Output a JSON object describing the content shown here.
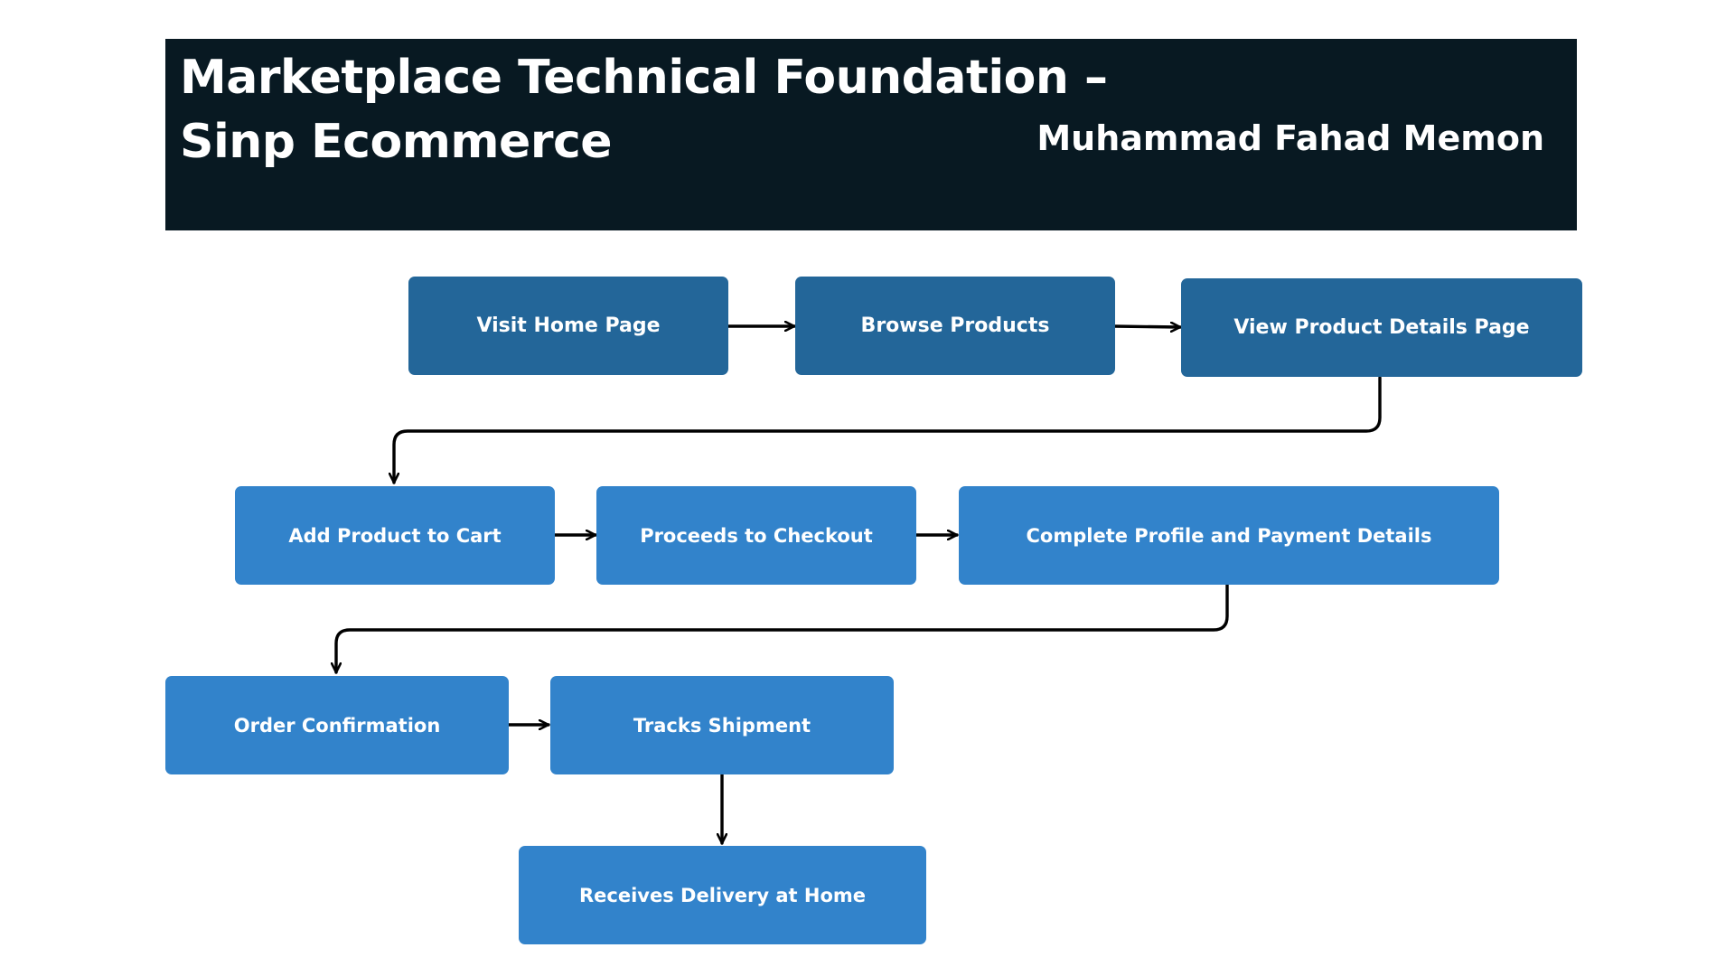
{
  "header": {
    "title_line1": "Marketplace Technical Foundation –",
    "title_line2": "Sinp Ecommerce",
    "author": "Muhammad Fahad Memon"
  },
  "colors": {
    "header_background": "#081922",
    "step_dark": "#236699",
    "step_light": "#3283cb",
    "connector": "#000000",
    "text": "#ffffff"
  },
  "flow": {
    "steps": [
      {
        "id": "visit-home-page",
        "label": "Visit Home Page"
      },
      {
        "id": "browse-products",
        "label": "Browse Products"
      },
      {
        "id": "view-product-details-page",
        "label": "View Product Details Page"
      },
      {
        "id": "add-product-to-cart",
        "label": "Add Product to Cart"
      },
      {
        "id": "proceeds-to-checkout",
        "label": "Proceeds to Checkout"
      },
      {
        "id": "complete-profile-and-payment-details",
        "label": "Complete Profile and Payment Details"
      },
      {
        "id": "order-confirmation",
        "label": "Order Confirmation"
      },
      {
        "id": "tracks-shipment",
        "label": "Tracks Shipment"
      },
      {
        "id": "receives-delivery-at-home",
        "label": "Receives Delivery at Home"
      }
    ],
    "connections": [
      {
        "from": "visit-home-page",
        "to": "browse-products"
      },
      {
        "from": "browse-products",
        "to": "view-product-details-page"
      },
      {
        "from": "view-product-details-page",
        "to": "add-product-to-cart"
      },
      {
        "from": "add-product-to-cart",
        "to": "proceeds-to-checkout"
      },
      {
        "from": "proceeds-to-checkout",
        "to": "complete-profile-and-payment-details"
      },
      {
        "from": "complete-profile-and-payment-details",
        "to": "order-confirmation"
      },
      {
        "from": "order-confirmation",
        "to": "tracks-shipment"
      },
      {
        "from": "tracks-shipment",
        "to": "receives-delivery-at-home"
      }
    ]
  }
}
